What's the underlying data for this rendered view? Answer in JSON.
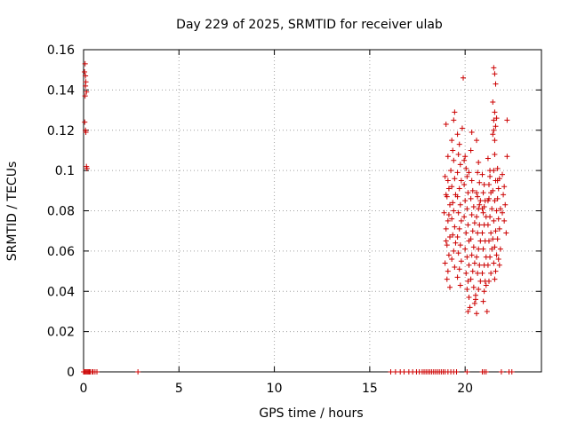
{
  "chart_data": {
    "type": "scatter",
    "title": "Day 229 of 2025, SRMTID for receiver ulab",
    "xlabel": "GPS time / hours",
    "ylabel": "SRMTID / TECUs",
    "xlim": [
      0,
      24
    ],
    "ylim": [
      0,
      0.16
    ],
    "x_ticks": [
      0,
      5,
      10,
      15,
      20
    ],
    "x_tick_labels": [
      "0",
      "5",
      "10",
      "15",
      "20"
    ],
    "y_ticks": [
      0,
      0.02,
      0.04,
      0.06,
      0.08,
      0.1,
      0.12,
      0.14,
      0.16
    ],
    "y_tick_labels": [
      "0",
      "0.02",
      "0.04",
      "0.06",
      "0.08",
      "0.1",
      "0.12",
      "0.14",
      "0.16"
    ],
    "grid": true,
    "marker": "+",
    "marker_color": "#cc0000",
    "series": [
      {
        "name": "SRMTID",
        "points": [
          [
            0.05,
            0.149
          ],
          [
            0.08,
            0.153
          ],
          [
            0.1,
            0.147
          ],
          [
            0.12,
            0.144
          ],
          [
            0.1,
            0.142
          ],
          [
            0.15,
            0.139
          ],
          [
            0.08,
            0.137
          ],
          [
            0.06,
            0.124
          ],
          [
            0.1,
            0.12
          ],
          [
            0.12,
            0.119
          ],
          [
            0.15,
            0.102
          ],
          [
            0.18,
            0.101
          ],
          [
            0.0,
            0.0
          ],
          [
            0.05,
            0.0
          ],
          [
            0.1,
            0.0
          ],
          [
            0.15,
            0.0
          ],
          [
            0.2,
            0.0
          ],
          [
            0.25,
            0.0
          ],
          [
            0.3,
            0.0
          ],
          [
            0.35,
            0.0
          ],
          [
            0.45,
            0.0
          ],
          [
            0.5,
            0.0
          ],
          [
            0.6,
            0.0
          ],
          [
            0.7,
            0.0
          ],
          [
            2.85,
            0.0
          ],
          [
            16.1,
            0.0
          ],
          [
            16.35,
            0.0
          ],
          [
            16.6,
            0.0
          ],
          [
            16.8,
            0.0
          ],
          [
            17.05,
            0.0
          ],
          [
            17.25,
            0.0
          ],
          [
            17.45,
            0.0
          ],
          [
            17.6,
            0.0
          ],
          [
            17.75,
            0.0
          ],
          [
            17.85,
            0.0
          ],
          [
            17.95,
            0.0
          ],
          [
            18.05,
            0.0
          ],
          [
            18.15,
            0.0
          ],
          [
            18.25,
            0.0
          ],
          [
            18.35,
            0.0
          ],
          [
            18.45,
            0.0
          ],
          [
            18.55,
            0.0
          ],
          [
            18.65,
            0.0
          ],
          [
            18.75,
            0.0
          ],
          [
            18.85,
            0.0
          ],
          [
            18.95,
            0.0
          ],
          [
            19.1,
            0.0
          ],
          [
            19.25,
            0.0
          ],
          [
            19.4,
            0.0
          ],
          [
            19.55,
            0.0
          ],
          [
            20.1,
            0.0
          ],
          [
            20.9,
            0.0
          ],
          [
            21.0,
            0.0
          ],
          [
            21.1,
            0.0
          ],
          [
            21.9,
            0.0
          ],
          [
            22.3,
            0.0
          ],
          [
            22.45,
            0.0
          ],
          [
            19.0,
            0.123
          ],
          [
            19.1,
            0.107
          ],
          [
            18.95,
            0.097
          ],
          [
            19.15,
            0.091
          ],
          [
            19.05,
            0.087
          ],
          [
            19.2,
            0.083
          ],
          [
            18.9,
            0.079
          ],
          [
            19.1,
            0.075
          ],
          [
            19.0,
            0.071
          ],
          [
            19.2,
            0.067
          ],
          [
            19.05,
            0.063
          ],
          [
            19.15,
            0.058
          ],
          [
            18.95,
            0.054
          ],
          [
            19.1,
            0.05
          ],
          [
            19.05,
            0.046
          ],
          [
            19.2,
            0.042
          ],
          [
            19.0,
            0.088
          ],
          [
            19.1,
            0.095
          ],
          [
            19.0,
            0.065
          ],
          [
            19.15,
            0.078
          ],
          [
            19.3,
            0.115
          ],
          [
            19.35,
            0.11
          ],
          [
            19.4,
            0.105
          ],
          [
            19.25,
            0.1
          ],
          [
            19.45,
            0.096
          ],
          [
            19.3,
            0.092
          ],
          [
            19.5,
            0.088
          ],
          [
            19.35,
            0.084
          ],
          [
            19.4,
            0.08
          ],
          [
            19.3,
            0.076
          ],
          [
            19.45,
            0.072
          ],
          [
            19.35,
            0.068
          ],
          [
            19.5,
            0.064
          ],
          [
            19.4,
            0.06
          ],
          [
            19.3,
            0.056
          ],
          [
            19.45,
            0.052
          ],
          [
            19.4,
            0.125
          ],
          [
            19.45,
            0.129
          ],
          [
            19.6,
            0.118
          ],
          [
            19.7,
            0.113
          ],
          [
            19.65,
            0.108
          ],
          [
            19.75,
            0.103
          ],
          [
            19.6,
            0.099
          ],
          [
            19.8,
            0.095
          ],
          [
            19.7,
            0.091
          ],
          [
            19.6,
            0.087
          ],
          [
            19.75,
            0.083
          ],
          [
            19.65,
            0.079
          ],
          [
            19.8,
            0.075
          ],
          [
            19.7,
            0.071
          ],
          [
            19.6,
            0.067
          ],
          [
            19.75,
            0.063
          ],
          [
            19.65,
            0.059
          ],
          [
            19.8,
            0.055
          ],
          [
            19.7,
            0.051
          ],
          [
            19.6,
            0.047
          ],
          [
            19.75,
            0.043
          ],
          [
            19.9,
            0.146
          ],
          [
            19.85,
            0.121
          ],
          [
            19.95,
            0.105
          ],
          [
            20.05,
            0.101
          ],
          [
            20.1,
            0.097
          ],
          [
            19.95,
            0.093
          ],
          [
            20.15,
            0.089
          ],
          [
            20.0,
            0.085
          ],
          [
            20.1,
            0.081
          ],
          [
            19.95,
            0.077
          ],
          [
            20.15,
            0.073
          ],
          [
            20.05,
            0.069
          ],
          [
            20.2,
            0.065
          ],
          [
            20.0,
            0.061
          ],
          [
            20.1,
            0.057
          ],
          [
            20.2,
            0.053
          ],
          [
            20.05,
            0.049
          ],
          [
            20.15,
            0.045
          ],
          [
            20.1,
            0.041
          ],
          [
            20.2,
            0.037
          ],
          [
            20.15,
            0.03
          ],
          [
            20.25,
            0.032
          ],
          [
            20.0,
            0.107
          ],
          [
            20.2,
            0.099
          ],
          [
            20.3,
            0.11
          ],
          [
            20.35,
            0.095
          ],
          [
            20.4,
            0.09
          ],
          [
            20.3,
            0.086
          ],
          [
            20.45,
            0.082
          ],
          [
            20.35,
            0.078
          ],
          [
            20.5,
            0.074
          ],
          [
            20.4,
            0.07
          ],
          [
            20.3,
            0.066
          ],
          [
            20.45,
            0.062
          ],
          [
            20.35,
            0.058
          ],
          [
            20.5,
            0.054
          ],
          [
            20.4,
            0.05
          ],
          [
            20.3,
            0.046
          ],
          [
            20.45,
            0.042
          ],
          [
            20.55,
            0.038
          ],
          [
            20.5,
            0.034
          ],
          [
            20.6,
            0.029
          ],
          [
            20.55,
            0.036
          ],
          [
            20.35,
            0.119
          ],
          [
            20.6,
            0.115
          ],
          [
            20.7,
            0.104
          ],
          [
            20.65,
            0.099
          ],
          [
            20.75,
            0.094
          ],
          [
            20.6,
            0.089
          ],
          [
            20.8,
            0.085
          ],
          [
            20.7,
            0.081
          ],
          [
            20.6,
            0.077
          ],
          [
            20.75,
            0.073
          ],
          [
            20.65,
            0.069
          ],
          [
            20.8,
            0.065
          ],
          [
            20.7,
            0.061
          ],
          [
            20.6,
            0.057
          ],
          [
            20.75,
            0.053
          ],
          [
            20.65,
            0.049
          ],
          [
            20.8,
            0.045
          ],
          [
            20.7,
            0.041
          ],
          [
            20.65,
            0.087
          ],
          [
            20.75,
            0.083
          ],
          [
            20.9,
            0.098
          ],
          [
            21.0,
            0.093
          ],
          [
            20.95,
            0.089
          ],
          [
            21.05,
            0.085
          ],
          [
            20.9,
            0.081
          ],
          [
            21.1,
            0.077
          ],
          [
            21.0,
            0.073
          ],
          [
            20.9,
            0.069
          ],
          [
            21.05,
            0.065
          ],
          [
            20.95,
            0.061
          ],
          [
            21.1,
            0.057
          ],
          [
            21.0,
            0.053
          ],
          [
            20.9,
            0.049
          ],
          [
            21.05,
            0.045
          ],
          [
            21.0,
            0.04
          ],
          [
            20.95,
            0.035
          ],
          [
            21.1,
            0.043
          ],
          [
            21.15,
            0.03
          ],
          [
            21.0,
            0.082
          ],
          [
            20.95,
            0.079
          ],
          [
            21.2,
            0.106
          ],
          [
            21.3,
            0.097
          ],
          [
            21.25,
            0.093
          ],
          [
            21.35,
            0.089
          ],
          [
            21.2,
            0.085
          ],
          [
            21.4,
            0.081
          ],
          [
            21.3,
            0.077
          ],
          [
            21.2,
            0.073
          ],
          [
            21.35,
            0.069
          ],
          [
            21.25,
            0.065
          ],
          [
            21.4,
            0.061
          ],
          [
            21.3,
            0.057
          ],
          [
            21.2,
            0.053
          ],
          [
            21.35,
            0.049
          ],
          [
            21.25,
            0.045
          ],
          [
            21.3,
            0.1
          ],
          [
            21.25,
            0.086
          ],
          [
            21.5,
            0.151
          ],
          [
            21.55,
            0.148
          ],
          [
            21.6,
            0.143
          ],
          [
            21.45,
            0.134
          ],
          [
            21.55,
            0.129
          ],
          [
            21.5,
            0.125
          ],
          [
            21.6,
            0.122
          ],
          [
            21.45,
            0.118
          ],
          [
            21.55,
            0.115
          ],
          [
            21.65,
            0.126
          ],
          [
            21.5,
            0.12
          ],
          [
            21.55,
            0.108
          ],
          [
            21.5,
            0.1
          ],
          [
            21.6,
            0.095
          ],
          [
            21.45,
            0.09
          ],
          [
            21.55,
            0.085
          ],
          [
            21.65,
            0.08
          ],
          [
            21.5,
            0.075
          ],
          [
            21.6,
            0.07
          ],
          [
            21.45,
            0.066
          ],
          [
            21.55,
            0.062
          ],
          [
            21.65,
            0.058
          ],
          [
            21.5,
            0.054
          ],
          [
            21.6,
            0.05
          ],
          [
            21.55,
            0.046
          ],
          [
            21.7,
            0.101
          ],
          [
            21.8,
            0.096
          ],
          [
            21.75,
            0.091
          ],
          [
            21.7,
            0.086
          ],
          [
            21.85,
            0.081
          ],
          [
            21.75,
            0.076
          ],
          [
            21.8,
            0.071
          ],
          [
            21.7,
            0.066
          ],
          [
            21.85,
            0.061
          ],
          [
            21.75,
            0.056
          ],
          [
            21.8,
            0.053
          ],
          [
            21.7,
            0.095
          ],
          [
            21.95,
            0.098
          ],
          [
            22.05,
            0.092
          ],
          [
            22.0,
            0.088
          ],
          [
            22.1,
            0.083
          ],
          [
            21.95,
            0.079
          ],
          [
            22.05,
            0.075
          ],
          [
            22.2,
            0.125
          ],
          [
            22.2,
            0.107
          ],
          [
            22.15,
            0.069
          ]
        ]
      }
    ]
  }
}
